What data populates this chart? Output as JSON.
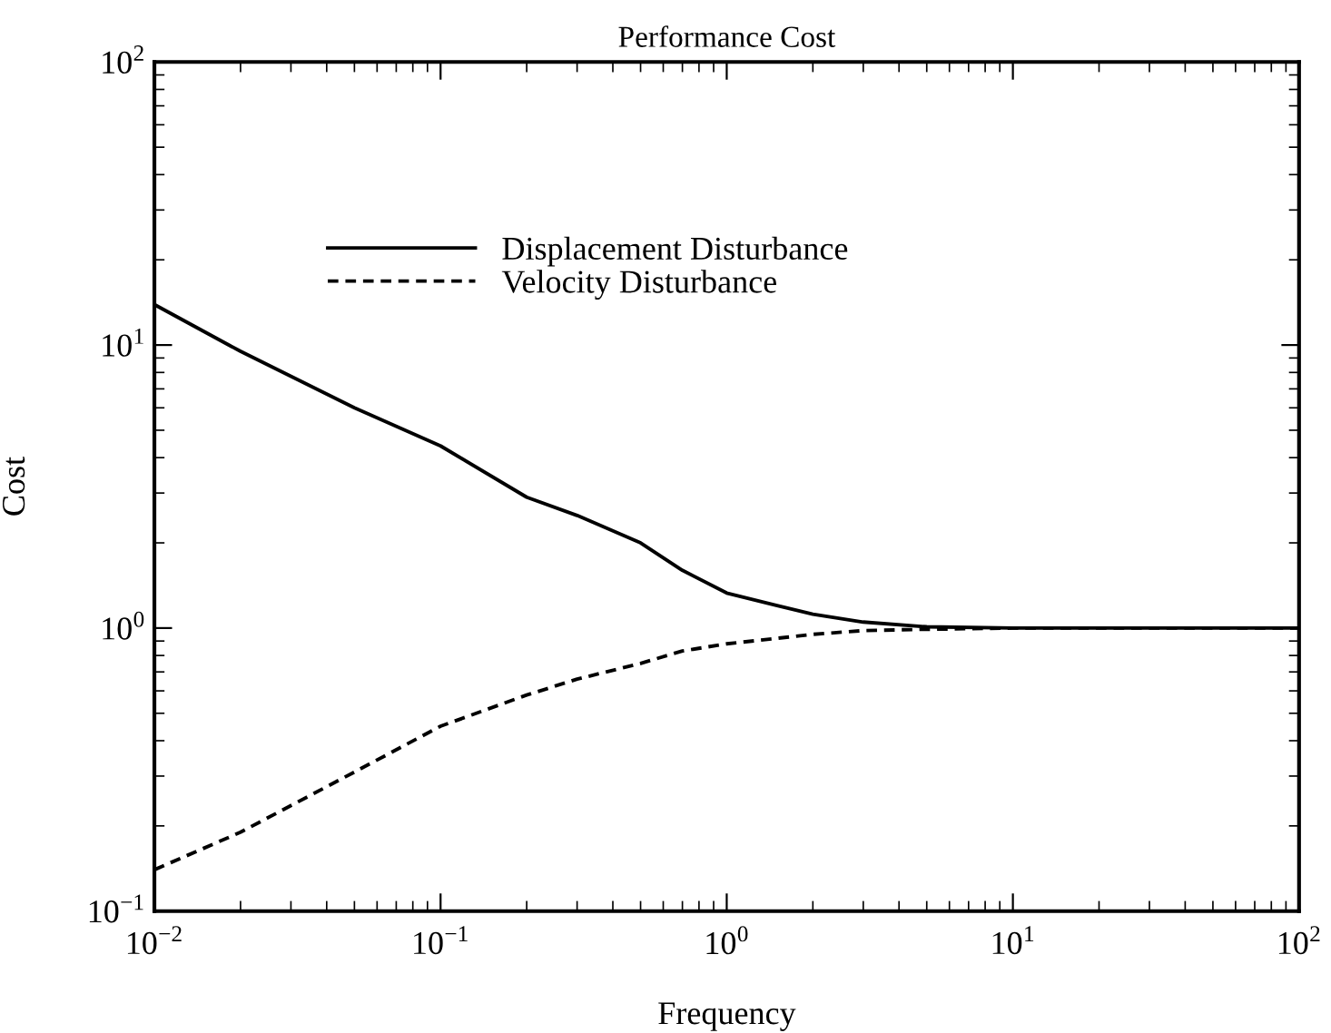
{
  "chart_data": {
    "type": "line",
    "title": "Performance Cost",
    "xlabel": "Frequency",
    "ylabel": "Cost",
    "log": "xy",
    "x": [
      0.01,
      0.02,
      0.05,
      0.1,
      0.2,
      0.3,
      0.5,
      0.7,
      1,
      1.5,
      2,
      3,
      5,
      10,
      100
    ],
    "series": [
      {
        "name": "Displacement Disturbance",
        "color": "#000000",
        "line_style": "solid",
        "values": [
          13.9,
          9.5,
          6.0,
          4.4,
          2.9,
          2.5,
          2.0,
          1.6,
          1.33,
          1.2,
          1.12,
          1.05,
          1.01,
          1.0,
          1.0
        ]
      },
      {
        "name": "Velocity Disturbance",
        "color": "#000000",
        "line_style": "dashed",
        "values": [
          0.14,
          0.19,
          0.31,
          0.45,
          0.58,
          0.66,
          0.75,
          0.83,
          0.88,
          0.92,
          0.95,
          0.98,
          0.99,
          1.0,
          1.0
        ]
      }
    ],
    "xlim": [
      0.01,
      100
    ],
    "ylim": [
      0.1,
      100
    ],
    "xticks": [
      {
        "value": 0.01,
        "label": "10$^{−2}$"
      },
      {
        "value": 0.1,
        "label": "10$^{−1}$"
      },
      {
        "value": 1,
        "label": "10$^{0}$"
      },
      {
        "value": 10,
        "label": "10$^{1}$"
      },
      {
        "value": 100,
        "label": "10$^{2}$"
      }
    ],
    "yticks": [
      {
        "value": 0.1,
        "label": "10$^{−1}$"
      },
      {
        "value": 1,
        "label": "10$^{0}$"
      },
      {
        "value": 10,
        "label": "10$^{1}$"
      },
      {
        "value": 100,
        "label": "10$^{2}$"
      }
    ],
    "grid": false,
    "legend": "top left"
  }
}
